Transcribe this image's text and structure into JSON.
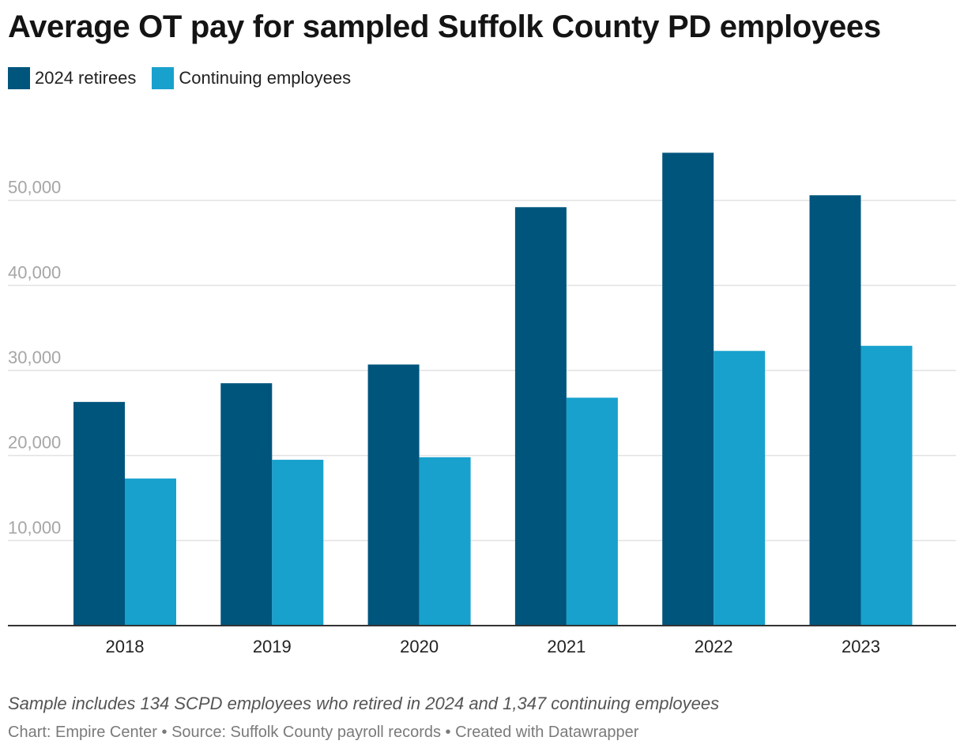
{
  "title": "Average OT pay for sampled Suffolk County PD employees",
  "colors": {
    "retirees": "#00557d",
    "continuing": "#18a1cd",
    "gridline": "#e2e2e2",
    "baseline": "#333333",
    "ytick": "#a6a6a6",
    "xtick": "#222222"
  },
  "chart_data": {
    "type": "bar",
    "title": "Average OT pay for sampled Suffolk County PD employees",
    "xlabel": "",
    "ylabel": "",
    "categories": [
      "2018",
      "2019",
      "2020",
      "2021",
      "2022",
      "2023"
    ],
    "series": [
      {
        "name": "2024 retirees",
        "values": [
          26300,
          28500,
          30700,
          49200,
          55600,
          50600
        ]
      },
      {
        "name": "Continuing employees",
        "values": [
          17300,
          19500,
          19800,
          26800,
          32300,
          32900
        ]
      }
    ],
    "yticks": [
      10000,
      20000,
      30000,
      40000,
      50000
    ],
    "ytick_labels": [
      "10,000",
      "20,000",
      "30,000",
      "40,000",
      "50,000"
    ],
    "ylim": [
      0,
      60000
    ],
    "grid": true,
    "legend_position": "top-left"
  },
  "footer": {
    "note": "Sample includes 134 SCPD employees who retired in 2024 and 1,347 continuing employees",
    "credit": "Chart: Empire Center • Source: Suffolk County payroll records • Created with Datawrapper"
  }
}
